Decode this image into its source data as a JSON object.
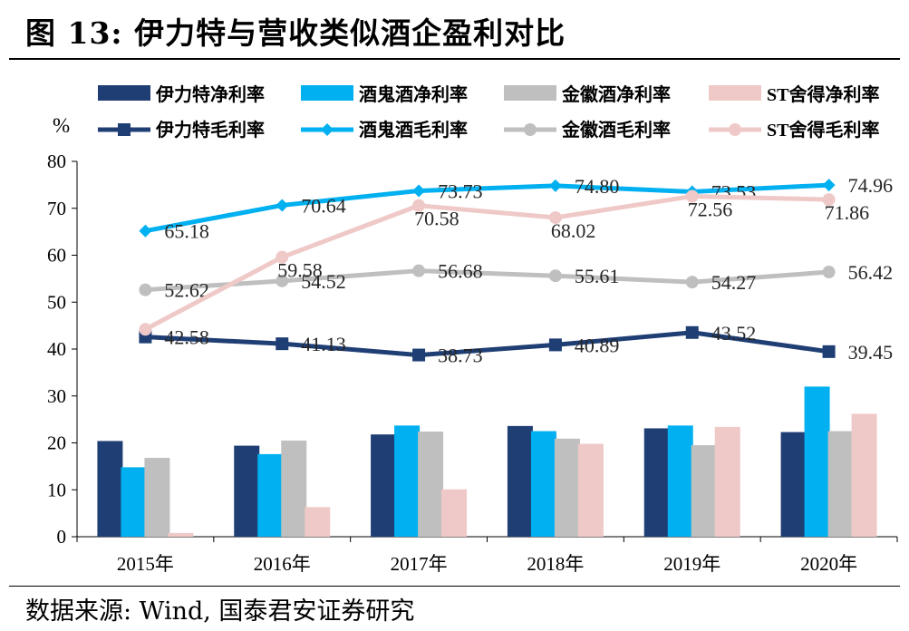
{
  "title": "图 13:  伊力特与营收类似酒企盈利对比",
  "source": "数据来源:  Wind, 国泰君安证券研究",
  "chart_data": {
    "type": "bar",
    "title": "伊力特与营收类似酒企盈利对比",
    "ylabel": "%",
    "ylim": [
      0,
      80
    ],
    "yticks": [
      "0",
      "10",
      "20",
      "30",
      "40",
      "50",
      "60",
      "70",
      "80"
    ],
    "categories": [
      "2015年",
      "2016年",
      "2017年",
      "2018年",
      "2019年",
      "2020年"
    ],
    "bar_series": [
      {
        "name": "伊力特净利率",
        "color": "#1f3e74",
        "values": [
          20.4,
          19.4,
          21.8,
          23.6,
          23.1,
          22.3
        ]
      },
      {
        "name": "酒鬼酒净利率",
        "color": "#00b0f0",
        "values": [
          14.8,
          17.6,
          23.7,
          22.5,
          23.7,
          32.0
        ]
      },
      {
        "name": "金徽酒净利率",
        "color": "#bfbfbf",
        "values": [
          16.8,
          20.5,
          22.4,
          20.9,
          19.5,
          22.5
        ]
      },
      {
        "name": "ST舍得净利率",
        "color": "#efc9c7",
        "values": [
          0.8,
          6.3,
          10.1,
          19.8,
          23.4,
          26.2
        ]
      }
    ],
    "line_series": [
      {
        "name": "伊力特毛利率",
        "color": "#1f3e74",
        "marker": "square",
        "values": [
          42.58,
          41.13,
          38.73,
          40.89,
          43.52,
          39.45
        ],
        "labels": [
          "42.58",
          "41.13",
          "38.73",
          "40.89",
          "43.52",
          "39.45"
        ]
      },
      {
        "name": "酒鬼酒毛利率",
        "color": "#00b0f0",
        "marker": "diamond",
        "values": [
          65.18,
          70.64,
          73.73,
          74.8,
          73.53,
          74.96
        ],
        "labels": [
          "65.18",
          "70.64",
          "73.73",
          "74.80",
          "73.53",
          "74.96"
        ]
      },
      {
        "name": "金徽酒毛利率",
        "color": "#bfbfbf",
        "marker": "circle",
        "values": [
          52.62,
          54.52,
          56.68,
          55.61,
          54.27,
          56.42
        ],
        "labels": [
          "52.62",
          "54.52",
          "56.68",
          "55.61",
          "54.27",
          "56.42"
        ]
      },
      {
        "name": "ST舍得毛利率",
        "color": "#efc9c7",
        "marker": "circle",
        "values": [
          44.2,
          59.58,
          70.58,
          68.02,
          72.56,
          71.86
        ],
        "labels": [
          "",
          "59.58",
          "70.58",
          "68.02",
          "72.56",
          "71.86"
        ]
      }
    ],
    "legend": "top",
    "grid": false
  }
}
